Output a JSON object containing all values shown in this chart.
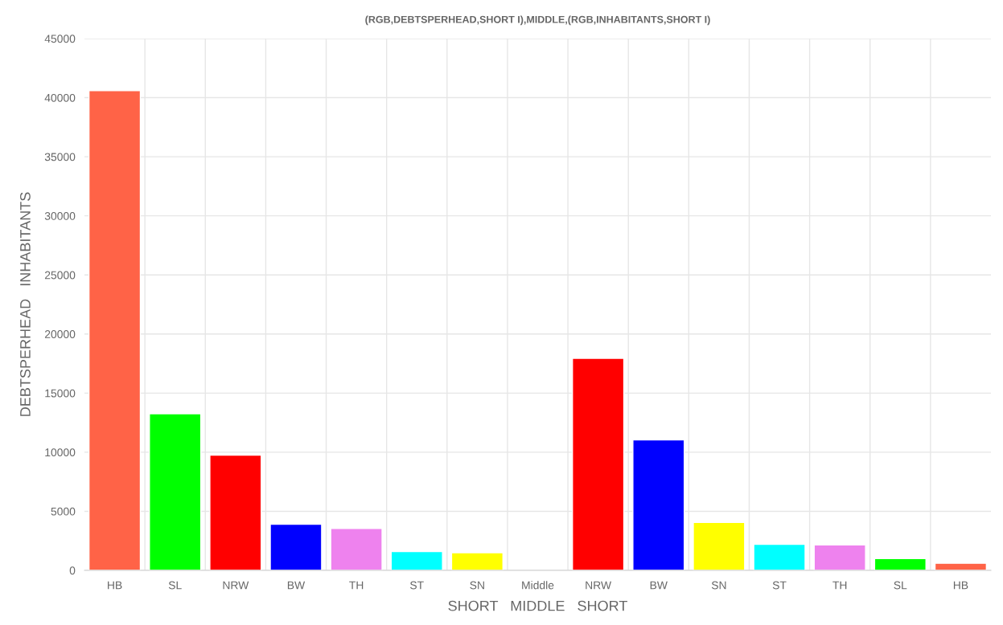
{
  "chart_data": {
    "type": "bar",
    "title": "(RGB,DEBTSPERHEAD,SHORT I),MIDDLE,(RGB,INHABITANTS,SHORT I)",
    "xlabel": "SHORT   MIDDLE   SHORT",
    "ylabel": "DEBTSPERHEAD   INHABITANTS",
    "categories": [
      "HB",
      "SL",
      "NRW",
      "BW",
      "TH",
      "ST",
      "SN",
      "Middle",
      "NRW",
      "BW",
      "SN",
      "ST",
      "TH",
      "SL",
      "HB"
    ],
    "values": [
      40600,
      13250,
      9750,
      3900,
      3550,
      1600,
      1500,
      null,
      17950,
      11050,
      4050,
      2200,
      2150,
      1000,
      600
    ],
    "colors": [
      "#ff6347",
      "#00ff00",
      "#ff0000",
      "#0000ff",
      "#ee82ee",
      "#00ffff",
      "#ffff00",
      "#000000",
      "#ff0000",
      "#0000ff",
      "#ffff00",
      "#00ffff",
      "#ee82ee",
      "#00ff00",
      "#ff6347"
    ],
    "ylim": [
      0,
      45000
    ],
    "yticks": [
      0,
      5000,
      10000,
      15000,
      20000,
      25000,
      30000,
      35000,
      40000,
      45000
    ],
    "grid": true,
    "legend": false
  }
}
